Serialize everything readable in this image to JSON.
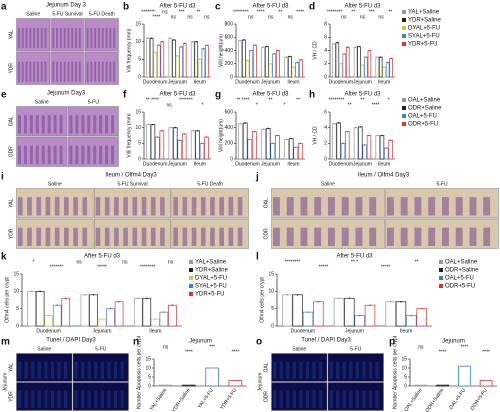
{
  "images": [
    {
      "panel": "a",
      "title": "Jejunum  Day 3",
      "columns": [
        "Saline",
        "5-FU Survival",
        "5-FU Death"
      ],
      "rows": [
        "YAL",
        "YDR"
      ],
      "color": "#b98cc8"
    },
    {
      "panel": "e",
      "title": "Jejunum Day3",
      "columns": [
        "Saline",
        "5-FU"
      ],
      "rows": [
        "OAL",
        "ODR"
      ],
      "color": "#b98cc8"
    },
    {
      "panel": "i",
      "title": "Ileum / Olfm4  Day3",
      "columns": [
        "Saline",
        "5-FU Survival",
        "5-FU Death"
      ],
      "rows": [
        "YAL",
        "YDR"
      ],
      "color": "#d9c7ae"
    },
    {
      "panel": "j",
      "title": "Ileum / Olfm4  Day3",
      "columns": [
        "Saline",
        "5-FU"
      ],
      "rows": [
        "OAL",
        "ODR"
      ],
      "color": "#d9c7ae"
    },
    {
      "panel": "m",
      "title": "Tunel / DAPI  Day3",
      "columns": [
        "Saline",
        "5-FU"
      ],
      "rows": [
        "YAL",
        "YDR"
      ],
      "side_label": "Jejunum",
      "color": "#0c0c48"
    },
    {
      "panel": "o",
      "title": "Tunel / DAPI  Day3",
      "columns": [
        "Saline",
        "5-FU"
      ],
      "rows": [
        "OAL",
        "ODR"
      ],
      "side_label": "Jejunum",
      "color": "#0c0c48"
    }
  ],
  "chart_data": [
    {
      "type": "bar",
      "panel": "b",
      "title": "After 5-FU d3",
      "y_label": "Villi frequency (mm)",
      "categories": [
        "Duodenum",
        "Jejunum",
        "Ileum"
      ],
      "ylim": [
        0,
        15
      ],
      "yticks": [
        0,
        5,
        10,
        15
      ],
      "series": [
        {
          "color": "#9a9a9a",
          "values": [
            11,
            11,
            10
          ]
        },
        {
          "color": "#222222",
          "values": [
            11,
            10.5,
            10
          ]
        },
        {
          "color": "#c9c94a",
          "values": [
            7,
            6,
            5
          ]
        },
        {
          "color": "#3f7bd6",
          "values": [
            9,
            8.5,
            8
          ]
        },
        {
          "color": "#e03030",
          "values": [
            10,
            9.5,
            9
          ]
        }
      ],
      "annotations": [
        "*******",
        "****",
        "ns",
        "ns",
        "***",
        "ns",
        "**",
        "ns"
      ]
    },
    {
      "type": "bar",
      "panel": "c",
      "title": "After 5-FU d3",
      "y_label": "Villi height(um)",
      "categories": [
        "Duodenum",
        "Jejunum",
        "Ileum"
      ],
      "ylim": [
        0,
        800
      ],
      "yticks": [
        0,
        200,
        400,
        600,
        800
      ],
      "series": [
        {
          "color": "#9a9a9a",
          "values": [
            550,
            450,
            300
          ]
        },
        {
          "color": "#222222",
          "values": [
            560,
            460,
            310
          ]
        },
        {
          "color": "#c9c94a",
          "values": [
            250,
            200,
            150
          ]
        },
        {
          "color": "#3f7bd6",
          "values": [
            400,
            350,
            220
          ]
        },
        {
          "color": "#e03030",
          "values": [
            480,
            400,
            260
          ]
        }
      ],
      "annotations": [
        "********",
        "ns",
        "****",
        "ns",
        "**",
        "ns",
        "****"
      ]
    },
    {
      "type": "bar",
      "panel": "d",
      "title": "After 5-FU d3",
      "y_label": "VH / CD",
      "categories": [
        "Duodenum",
        "Jejunum",
        "Ileum"
      ],
      "ylim": [
        0,
        8
      ],
      "yticks": [
        0,
        2,
        4,
        6,
        8
      ],
      "legend": true,
      "series": [
        {
          "name": "YAL+Saline",
          "color": "#9a9a9a",
          "values": [
            5,
            4.5,
            3
          ]
        },
        {
          "name": "YDR+Saline",
          "color": "#222222",
          "values": [
            5.2,
            4.6,
            3
          ]
        },
        {
          "name": "DYAL+5-FU",
          "color": "#c9c94a",
          "values": [
            2,
            1.8,
            1.5
          ]
        },
        {
          "name": "SYAL+5-FU",
          "color": "#3f7bd6",
          "values": [
            3.5,
            3,
            2.2
          ]
        },
        {
          "name": "YDR+5-FU",
          "color": "#e03030",
          "values": [
            4.5,
            4,
            2.8
          ]
        }
      ],
      "annotations": [
        "********",
        "ns",
        "**",
        "ns",
        "***",
        "ns",
        "**"
      ]
    },
    {
      "type": "bar",
      "panel": "f",
      "title": "After 5-FU d3",
      "y_label": "Villi frequency (mm)",
      "categories": [
        "Duodenum",
        "Jejunum",
        "Ileum"
      ],
      "ylim": [
        0,
        15
      ],
      "yticks": [
        0,
        5,
        10,
        15
      ],
      "series": [
        {
          "color": "#9a9a9a",
          "values": [
            11,
            10,
            9
          ]
        },
        {
          "color": "#222222",
          "values": [
            11,
            10,
            9
          ]
        },
        {
          "color": "#3f7bd6",
          "values": [
            7,
            6,
            5
          ]
        },
        {
          "color": "#e03030",
          "values": [
            9,
            8,
            7
          ]
        }
      ],
      "annotations": [
        "** ****",
        "ns",
        "*******",
        "*"
      ]
    },
    {
      "type": "bar",
      "panel": "g",
      "title": "After 5-FU d3",
      "y_label": "Villi height(um)",
      "categories": [
        "Duodenum",
        "Jejunum",
        "Ileum"
      ],
      "ylim": [
        0,
        600
      ],
      "yticks": [
        0,
        200,
        400,
        600
      ],
      "series": [
        {
          "color": "#9a9a9a",
          "values": [
            450,
            380,
            250
          ]
        },
        {
          "color": "#222222",
          "values": [
            460,
            390,
            260
          ]
        },
        {
          "color": "#3f7bd6",
          "values": [
            250,
            200,
            150
          ]
        },
        {
          "color": "#e03030",
          "values": [
            350,
            300,
            200
          ]
        }
      ],
      "annotations": [
        "** ****",
        "*",
        "**",
        "*",
        "**"
      ]
    },
    {
      "type": "bar",
      "panel": "h",
      "title": "After 5-FU d3",
      "y_label": "VH / CD",
      "categories": [
        "Duodenum",
        "Jejunum",
        "Ileum"
      ],
      "ylim": [
        0,
        6
      ],
      "yticks": [
        0,
        2,
        4,
        6
      ],
      "legend": true,
      "series": [
        {
          "name": "OAL+Saline",
          "color": "#9a9a9a",
          "values": [
            4.5,
            4,
            3
          ]
        },
        {
          "name": "ODR+Saline",
          "color": "#222222",
          "values": [
            4.6,
            4.1,
            3
          ]
        },
        {
          "name": "OAL+5-FU",
          "color": "#3f7bd6",
          "values": [
            2,
            1.8,
            1.4
          ]
        },
        {
          "name": "ODR+5-FU",
          "color": "#e03030",
          "values": [
            3.5,
            3,
            2.4
          ]
        }
      ],
      "annotations": [
        "********",
        "**",
        "**",
        "****",
        "*"
      ]
    },
    {
      "type": "bar",
      "panel": "k",
      "title": "After 5-FU d3",
      "y_label": "Olfm4 cells per crypt",
      "categories": [
        "Duodenum",
        "Jejunum",
        "Ileum"
      ],
      "ylim": [
        0,
        15
      ],
      "yticks": [
        0,
        5,
        10,
        15
      ],
      "legend": true,
      "series": [
        {
          "name": "YAL+Saline",
          "color": "#9a9a9a",
          "values": [
            10,
            9,
            8
          ]
        },
        {
          "name": "YDR+Saline",
          "color": "#222222",
          "values": [
            10,
            9,
            8
          ]
        },
        {
          "name": "DYAL+5-FU",
          "color": "#c9c94a",
          "values": [
            3,
            2,
            2
          ]
        },
        {
          "name": "SYAL+5-FU",
          "color": "#3f7bd6",
          "values": [
            6,
            5,
            4
          ]
        },
        {
          "name": "YDR+5-FU",
          "color": "#e03030",
          "values": [
            8,
            7,
            6
          ]
        }
      ],
      "annotations": [
        "*",
        "*******",
        "ns",
        "*****",
        "ns",
        "********",
        "ns"
      ]
    },
    {
      "type": "bar",
      "panel": "l",
      "title": "After 5-FU d3",
      "y_label": "Olfm4 cells per crypt",
      "categories": [
        "Duodenum",
        "Jejunum",
        "Ileum"
      ],
      "ylim": [
        0,
        15
      ],
      "yticks": [
        0,
        5,
        10,
        15
      ],
      "legend": true,
      "series": [
        {
          "name": "OAL+Saline",
          "color": "#9a9a9a",
          "values": [
            9,
            8,
            7
          ]
        },
        {
          "name": "ODR+Saline",
          "color": "#222222",
          "values": [
            9,
            8,
            7
          ]
        },
        {
          "name": "OAL+5-FU",
          "color": "#3f7bd6",
          "values": [
            4,
            3,
            3
          ]
        },
        {
          "name": "ODR+5-FU",
          "color": "#e03030",
          "values": [
            7,
            6,
            5
          ]
        }
      ],
      "annotations": [
        "********",
        "*****",
        "** *",
        "*****",
        "**"
      ]
    },
    {
      "type": "bar",
      "panel": "n",
      "title": "Jejunum",
      "y_label": "Number Apoptosis cells per crypt",
      "categories": [
        "YAL+Saline",
        "YDR+Saline",
        "YAL+5-FU",
        "YDR+5-FU"
      ],
      "ylim": [
        0,
        15
      ],
      "yticks": [
        0,
        5,
        10,
        15
      ],
      "values": [
        0.5,
        0.5,
        10,
        3
      ],
      "colors": [
        "#9a9a9a",
        "#222222",
        "#3f7bd6",
        "#e03030"
      ],
      "annotations": [
        "ns",
        "****",
        "***",
        "****"
      ]
    },
    {
      "type": "bar",
      "panel": "p",
      "title": "Jejunum",
      "y_label": "Number Apoptosis cells per crypt",
      "categories": [
        "OAL+Saline",
        "ODR+Saline",
        "OAL+5-FU",
        "ODR+5-FU"
      ],
      "ylim": [
        0,
        15
      ],
      "yticks": [
        0,
        5,
        10,
        15
      ],
      "values": [
        0.5,
        0.5,
        11,
        3
      ],
      "colors": [
        "#9a9a9a",
        "#222222",
        "#3f7bd6",
        "#e03030"
      ],
      "annotations": [
        "ns",
        "****",
        "****",
        "****"
      ]
    }
  ]
}
